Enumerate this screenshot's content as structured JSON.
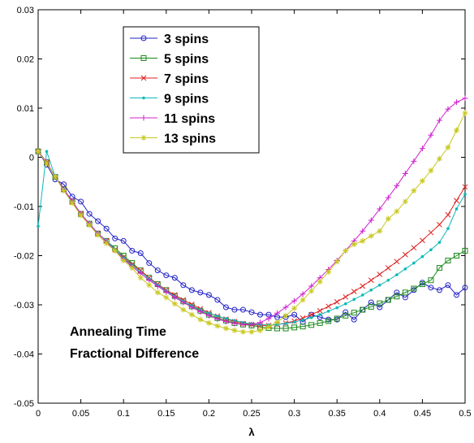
{
  "chart_data": {
    "type": "line",
    "title": "",
    "xlabel": "λ",
    "ylabel": "",
    "xlim": [
      0,
      0.5
    ],
    "ylim": [
      -0.05,
      0.03
    ],
    "x_ticks": [
      "0",
      "0.05",
      "0.1",
      "0.15",
      "0.2",
      "0.25",
      "0.3",
      "0.35",
      "0.4",
      "0.45",
      "0.5"
    ],
    "y_ticks": [
      "-0.05",
      "-0.04",
      "-0.03",
      "-0.02",
      "-0.01",
      "0",
      "0.01",
      "0.02",
      "0.03"
    ],
    "grid": false,
    "legend_position": "top-left",
    "annotation": [
      "Annealing Time",
      "Fractional Difference"
    ],
    "series": [
      {
        "name": "3 spins",
        "color": "#2020c8",
        "marker": "circle",
        "x": [
          0,
          0.01,
          0.02,
          0.03,
          0.04,
          0.05,
          0.06,
          0.07,
          0.08,
          0.09,
          0.1,
          0.11,
          0.12,
          0.13,
          0.14,
          0.15,
          0.16,
          0.17,
          0.18,
          0.19,
          0.2,
          0.21,
          0.22,
          0.23,
          0.24,
          0.25,
          0.26,
          0.27,
          0.28,
          0.29,
          0.3,
          0.31,
          0.32,
          0.33,
          0.34,
          0.35,
          0.36,
          0.37,
          0.38,
          0.39,
          0.4,
          0.41,
          0.42,
          0.43,
          0.44,
          0.45,
          0.46,
          0.47,
          0.48,
          0.49,
          0.5
        ],
        "y": [
          0.0012,
          -0.0015,
          -0.0045,
          -0.0055,
          -0.008,
          -0.009,
          -0.0115,
          -0.013,
          -0.0145,
          -0.0165,
          -0.017,
          -0.019,
          -0.0195,
          -0.0215,
          -0.023,
          -0.024,
          -0.0245,
          -0.026,
          -0.027,
          -0.0275,
          -0.028,
          -0.029,
          -0.0305,
          -0.031,
          -0.031,
          -0.0315,
          -0.032,
          -0.032,
          -0.0325,
          -0.0325,
          -0.032,
          -0.0335,
          -0.032,
          -0.0325,
          -0.033,
          -0.033,
          -0.0315,
          -0.033,
          -0.031,
          -0.0295,
          -0.0305,
          -0.029,
          -0.0275,
          -0.0285,
          -0.027,
          -0.0255,
          -0.0265,
          -0.027,
          -0.026,
          -0.028,
          -0.0265
        ]
      },
      {
        "name": "5 spins",
        "color": "#1a8a1a",
        "marker": "square",
        "x": [
          0,
          0.01,
          0.02,
          0.03,
          0.04,
          0.05,
          0.06,
          0.07,
          0.08,
          0.09,
          0.1,
          0.11,
          0.12,
          0.13,
          0.14,
          0.15,
          0.16,
          0.17,
          0.18,
          0.19,
          0.2,
          0.21,
          0.22,
          0.23,
          0.24,
          0.25,
          0.26,
          0.27,
          0.28,
          0.29,
          0.3,
          0.31,
          0.32,
          0.33,
          0.34,
          0.35,
          0.36,
          0.37,
          0.38,
          0.39,
          0.4,
          0.41,
          0.42,
          0.43,
          0.44,
          0.45,
          0.46,
          0.47,
          0.48,
          0.49,
          0.5
        ],
        "y": [
          0.0012,
          -0.001,
          -0.004,
          -0.0065,
          -0.009,
          -0.0115,
          -0.0135,
          -0.0155,
          -0.017,
          -0.0185,
          -0.02,
          -0.0215,
          -0.023,
          -0.0245,
          -0.0258,
          -0.027,
          -0.0282,
          -0.0293,
          -0.0303,
          -0.0312,
          -0.032,
          -0.0327,
          -0.0332,
          -0.0337,
          -0.034,
          -0.0342,
          -0.0345,
          -0.0347,
          -0.0348,
          -0.0348,
          -0.0346,
          -0.0344,
          -0.0341,
          -0.0337,
          -0.0333,
          -0.0328,
          -0.0322,
          -0.0316,
          -0.031,
          -0.0304,
          -0.0297,
          -0.029,
          -0.0283,
          -0.0275,
          -0.0267,
          -0.0258,
          -0.025,
          -0.0225,
          -0.021,
          -0.02,
          -0.019
        ]
      },
      {
        "name": "7 spins",
        "color": "#e02020",
        "marker": "x",
        "x": [
          0,
          0.01,
          0.02,
          0.03,
          0.04,
          0.05,
          0.06,
          0.07,
          0.08,
          0.09,
          0.1,
          0.11,
          0.12,
          0.13,
          0.14,
          0.15,
          0.16,
          0.17,
          0.18,
          0.19,
          0.2,
          0.21,
          0.22,
          0.23,
          0.24,
          0.25,
          0.26,
          0.27,
          0.28,
          0.29,
          0.3,
          0.31,
          0.32,
          0.33,
          0.34,
          0.35,
          0.36,
          0.37,
          0.38,
          0.39,
          0.4,
          0.41,
          0.42,
          0.43,
          0.44,
          0.45,
          0.46,
          0.47,
          0.48,
          0.49,
          0.5
        ],
        "y": [
          0.0012,
          -0.001,
          -0.004,
          -0.0065,
          -0.009,
          -0.0115,
          -0.0135,
          -0.0155,
          -0.017,
          -0.0188,
          -0.0203,
          -0.0218,
          -0.023,
          -0.0245,
          -0.0258,
          -0.027,
          -0.028,
          -0.029,
          -0.0299,
          -0.0308,
          -0.0316,
          -0.0323,
          -0.0329,
          -0.0334,
          -0.0338,
          -0.034,
          -0.0342,
          -0.0342,
          -0.034,
          -0.0337,
          -0.0333,
          -0.0327,
          -0.032,
          -0.0312,
          -0.0303,
          -0.0294,
          -0.0284,
          -0.0273,
          -0.0262,
          -0.025,
          -0.0238,
          -0.0225,
          -0.0212,
          -0.0198,
          -0.0184,
          -0.0169,
          -0.0153,
          -0.0137,
          -0.0117,
          -0.0088,
          -0.006
        ]
      },
      {
        "name": "9 spins",
        "color": "#10b8b8",
        "marker": "dot",
        "x": [
          0,
          0.01,
          0.02,
          0.03,
          0.04,
          0.05,
          0.06,
          0.07,
          0.08,
          0.09,
          0.1,
          0.11,
          0.12,
          0.13,
          0.14,
          0.15,
          0.16,
          0.17,
          0.18,
          0.19,
          0.2,
          0.21,
          0.22,
          0.23,
          0.24,
          0.25,
          0.26,
          0.27,
          0.28,
          0.29,
          0.3,
          0.31,
          0.32,
          0.33,
          0.34,
          0.35,
          0.36,
          0.37,
          0.38,
          0.39,
          0.4,
          0.41,
          0.42,
          0.43,
          0.44,
          0.45,
          0.46,
          0.47,
          0.48,
          0.49,
          0.5
        ],
        "y": [
          -0.014,
          0.0012,
          -0.004,
          -0.0065,
          -0.009,
          -0.0115,
          -0.0135,
          -0.0155,
          -0.017,
          -0.0188,
          -0.0205,
          -0.022,
          -0.0233,
          -0.0247,
          -0.026,
          -0.0272,
          -0.0283,
          -0.0293,
          -0.0302,
          -0.031,
          -0.0317,
          -0.0323,
          -0.0328,
          -0.0332,
          -0.0336,
          -0.0339,
          -0.034,
          -0.0341,
          -0.034,
          -0.0338,
          -0.0335,
          -0.0331,
          -0.0326,
          -0.032,
          -0.0313,
          -0.0306,
          -0.0298,
          -0.0289,
          -0.028,
          -0.027,
          -0.026,
          -0.025,
          -0.0239,
          -0.0227,
          -0.0215,
          -0.0202,
          -0.0188,
          -0.0173,
          -0.0145,
          -0.0105,
          -0.0075
        ]
      },
      {
        "name": "11 spins",
        "color": "#d020d0",
        "marker": "plus",
        "x": [
          0,
          0.01,
          0.02,
          0.03,
          0.04,
          0.05,
          0.06,
          0.07,
          0.08,
          0.09,
          0.1,
          0.11,
          0.12,
          0.13,
          0.14,
          0.15,
          0.16,
          0.17,
          0.18,
          0.19,
          0.2,
          0.21,
          0.22,
          0.23,
          0.24,
          0.25,
          0.26,
          0.27,
          0.28,
          0.29,
          0.3,
          0.31,
          0.32,
          0.33,
          0.34,
          0.35,
          0.36,
          0.37,
          0.38,
          0.39,
          0.4,
          0.41,
          0.42,
          0.43,
          0.44,
          0.45,
          0.46,
          0.47,
          0.48,
          0.49,
          0.5
        ],
        "y": [
          0.0012,
          -0.001,
          -0.004,
          -0.0065,
          -0.009,
          -0.0115,
          -0.0135,
          -0.0155,
          -0.0172,
          -0.019,
          -0.0207,
          -0.0222,
          -0.0236,
          -0.025,
          -0.0262,
          -0.0274,
          -0.0285,
          -0.0295,
          -0.0305,
          -0.0314,
          -0.0322,
          -0.0329,
          -0.0334,
          -0.0338,
          -0.034,
          -0.034,
          -0.0336,
          -0.0328,
          -0.0317,
          -0.0305,
          -0.0292,
          -0.0278,
          -0.0262,
          -0.0245,
          -0.0228,
          -0.021,
          -0.019,
          -0.017,
          -0.015,
          -0.0128,
          -0.0105,
          -0.0082,
          -0.0058,
          -0.0033,
          -0.0008,
          0.0018,
          0.0045,
          0.0075,
          0.0098,
          0.0112,
          0.012
        ]
      },
      {
        "name": "13 spins",
        "color": "#c8c820",
        "marker": "star",
        "x": [
          0,
          0.01,
          0.02,
          0.03,
          0.04,
          0.05,
          0.06,
          0.07,
          0.08,
          0.09,
          0.1,
          0.11,
          0.12,
          0.13,
          0.14,
          0.15,
          0.16,
          0.17,
          0.18,
          0.19,
          0.2,
          0.21,
          0.22,
          0.23,
          0.24,
          0.25,
          0.26,
          0.27,
          0.28,
          0.29,
          0.3,
          0.31,
          0.32,
          0.33,
          0.34,
          0.35,
          0.36,
          0.37,
          0.38,
          0.39,
          0.4,
          0.41,
          0.42,
          0.43,
          0.44,
          0.45,
          0.46,
          0.47,
          0.48,
          0.49,
          0.5
        ],
        "y": [
          0.0012,
          -0.0012,
          -0.004,
          -0.0068,
          -0.0093,
          -0.0118,
          -0.0138,
          -0.0158,
          -0.0175,
          -0.019,
          -0.021,
          -0.0225,
          -0.0245,
          -0.026,
          -0.0275,
          -0.0285,
          -0.0298,
          -0.031,
          -0.032,
          -0.033,
          -0.0337,
          -0.0343,
          -0.0348,
          -0.0352,
          -0.0355,
          -0.0355,
          -0.0352,
          -0.0345,
          -0.0335,
          -0.0322,
          -0.0307,
          -0.029,
          -0.0272,
          -0.0253,
          -0.0233,
          -0.0212,
          -0.019,
          -0.0177,
          -0.017,
          -0.016,
          -0.015,
          -0.0125,
          -0.011,
          -0.009,
          -0.0068,
          -0.0048,
          -0.0027,
          -0.0003,
          0.002,
          0.0055,
          0.009
        ]
      }
    ]
  }
}
